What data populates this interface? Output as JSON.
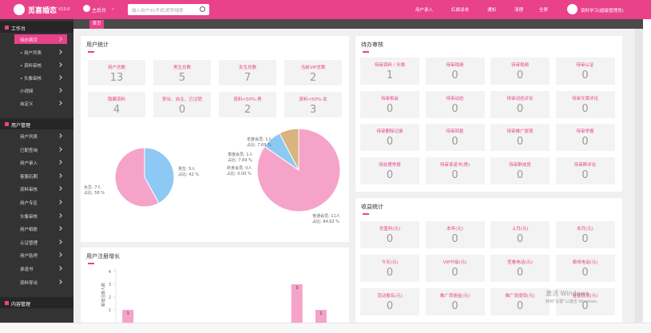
{
  "header": {
    "logo": "觅喜婚恋",
    "version": "V10.0",
    "site": "主后台",
    "search_placeholder": "输入用户ID/手机/昵称搜索",
    "actions": [
      "用户录入",
      "红娘谈单",
      "通知",
      "清理",
      "全屏"
    ],
    "user": "资料学习(超级管理员)"
  },
  "sidebar": {
    "sections": [
      {
        "title": "工作台",
        "items": [
          "待办首页",
          "• 用户列表",
          "• 资料审核",
          "• 头像审核",
          "小视频",
          "自定义"
        ]
      },
      {
        "title": "用户管理",
        "items": [
          "用户列表",
          "已配查询",
          "用户录入",
          "客服石期",
          "资料审核",
          "用户专区",
          "头像审核",
          "用户相册",
          "认证管理",
          "用户贴吧",
          "承诺书",
          "资料导出"
        ]
      },
      {
        "title": "内容管理",
        "items": []
      }
    ]
  },
  "tabs": [
    "首页"
  ],
  "user_stats": {
    "title": "用户统计",
    "cards": [
      {
        "label": "用户总数",
        "value": 13
      },
      {
        "label": "男生总数",
        "value": 5
      },
      {
        "label": "女生总数",
        "value": 7
      },
      {
        "label": "当前VIP总数",
        "value": 2
      },
      {
        "label": "隐藏资料",
        "value": 4
      },
      {
        "label": "职业、自主、已注销",
        "value": 0
      },
      {
        "label": "资料<50%-男",
        "value": 2
      },
      {
        "label": "资料<50%-女",
        "value": 3
      }
    ],
    "chart_data": [
      {
        "type": "pie",
        "items": [
          {
            "label": "男生: 5人",
            "value": 5,
            "share": 42,
            "share_label": "占比: 42 %",
            "color": "#8ec8f4"
          },
          {
            "label": "女生: 7人",
            "value": 7,
            "share": 58,
            "share_label": "占比: 58 %",
            "color": "#f5a3c9"
          }
        ]
      },
      {
        "type": "pie",
        "items": [
          {
            "label": "普通会员: 11人",
            "value": 11,
            "share": 84.62,
            "share_label": "占比: 84.62 %",
            "color": "#f5a3c9"
          },
          {
            "label": "终身会员: 0人",
            "value": 0,
            "share": 0.0,
            "share_label": "占比: 0.00 %",
            "color": "#9e8fd6"
          },
          {
            "label": "季度会员: 1人",
            "value": 1,
            "share": 7.69,
            "share_label": "占比: 7.69 %",
            "color": "#8ec8f4"
          },
          {
            "label": "年度会员: 1人",
            "value": 1,
            "share": 7.69,
            "share_label": "占比: 7.69 %",
            "color": "#d8b47f"
          }
        ]
      }
    ]
  },
  "registration": {
    "title": "用户注册增长",
    "chart_data": {
      "type": "bar",
      "y_label": "新增注册人数",
      "categories": [
        null,
        null,
        null,
        null,
        null,
        null,
        null,
        null,
        null
      ],
      "values": [
        1,
        0,
        0,
        0,
        0,
        0,
        0,
        3,
        1
      ],
      "color": "#f5a3c9",
      "ylim": [
        0,
        4
      ],
      "yticks": [
        1,
        2,
        3,
        4
      ]
    }
  },
  "todo": {
    "title": "待办审核",
    "cards": [
      {
        "label": "待审资料 / 头像",
        "value": 1
      },
      {
        "label": "待审相册",
        "value": 0
      },
      {
        "label": "待审视频",
        "value": 0
      },
      {
        "label": "待审认证",
        "value": 0
      },
      {
        "label": "待审相会",
        "value": 0
      },
      {
        "label": "待审动态",
        "value": 0
      },
      {
        "label": "待审动态评论",
        "value": 0
      },
      {
        "label": "待审文章评论",
        "value": 0
      },
      {
        "label": "待审删除记录",
        "value": 0
      },
      {
        "label": "待审回复",
        "value": 0
      },
      {
        "label": "待审推广提现",
        "value": 0
      },
      {
        "label": "待审举报",
        "value": 0
      },
      {
        "label": "待处理举报",
        "value": 0
      },
      {
        "label": "待审承诺书(男)",
        "value": 0
      },
      {
        "label": "待审群成员",
        "value": 0
      },
      {
        "label": "待审群评论",
        "value": 0
      }
    ]
  },
  "income": {
    "title": "收益统计",
    "cards": [
      {
        "label": "总盈利(元)",
        "value": 0
      },
      {
        "label": "本年(元)",
        "value": 0
      },
      {
        "label": "上月(元)",
        "value": 0
      },
      {
        "label": "本月(元)",
        "value": 0
      },
      {
        "label": "今天(元)",
        "value": 0
      },
      {
        "label": "VIP升级(元)",
        "value": 0
      },
      {
        "label": "查看电话(元)",
        "value": 0
      },
      {
        "label": "牵线电话(元)",
        "value": 0
      },
      {
        "label": "活动报名(元)",
        "value": 0
      },
      {
        "label": "推广员佣金(元)",
        "value": 0
      },
      {
        "label": "推广员提现(元)",
        "value": 0
      },
      {
        "label": "金额提现(元)",
        "value": 0
      }
    ]
  },
  "watermark": {
    "title": "激活 Windows",
    "text": "转到\"设置\"以激活 Windows。"
  }
}
